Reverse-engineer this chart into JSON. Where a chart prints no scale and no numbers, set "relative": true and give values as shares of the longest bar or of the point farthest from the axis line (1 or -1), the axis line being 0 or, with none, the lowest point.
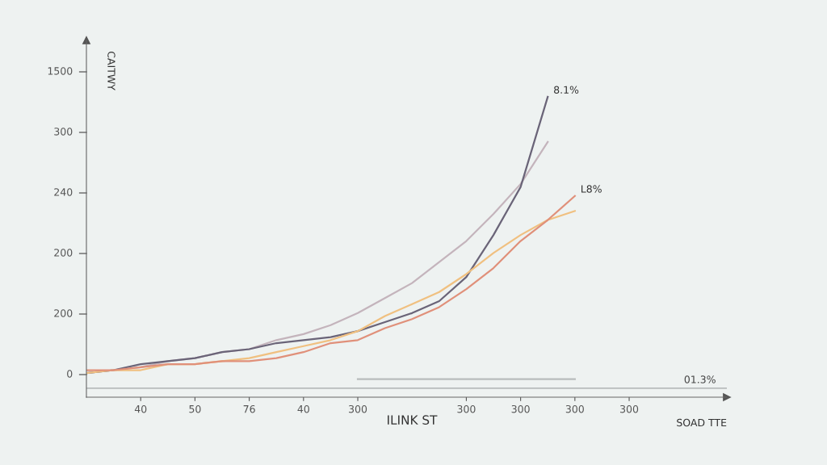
{
  "chart_data": {
    "type": "line",
    "ylabel": "CAITWY",
    "xlabel": "ILINK ST",
    "relative": true,
    "categories": [
      null,
      null,
      "40",
      null,
      "50",
      null,
      "76",
      null,
      "40",
      null,
      "300",
      null,
      null,
      null,
      "300",
      null,
      "300",
      null,
      "300",
      null,
      "300"
    ],
    "series": [
      {
        "color": "#c4b4bc",
        "values": [
          0.08,
          0.09,
          0.1,
          0.12,
          0.13,
          0.15,
          0.16,
          0.19,
          0.21,
          0.24,
          0.28,
          0.33,
          0.38,
          0.45,
          0.52,
          0.61,
          0.71,
          0.85,
          null,
          null,
          null
        ]
      },
      {
        "color": "#6a6478",
        "values": [
          0.08,
          0.09,
          0.11,
          0.12,
          0.13,
          0.15,
          0.16,
          0.18,
          0.19,
          0.2,
          0.22,
          0.25,
          0.28,
          0.32,
          0.4,
          0.54,
          0.7,
          1.0,
          null,
          null,
          null
        ]
      },
      {
        "color": "#f0c080",
        "values": [
          0.08,
          0.09,
          0.09,
          0.11,
          0.11,
          0.12,
          0.13,
          0.15,
          0.17,
          0.19,
          0.22,
          0.27,
          0.31,
          0.35,
          0.41,
          0.48,
          0.54,
          0.59,
          0.62,
          null,
          null
        ]
      },
      {
        "color": "#e0907a",
        "values": [
          0.09,
          0.09,
          0.1,
          0.11,
          0.11,
          0.12,
          0.12,
          0.13,
          0.15,
          0.18,
          0.19,
          0.23,
          0.26,
          0.3,
          0.36,
          0.43,
          0.52,
          0.59,
          0.67,
          null,
          null
        ]
      },
      {
        "color": "#b8bcbc",
        "values": [
          null,
          null,
          null,
          null,
          null,
          null,
          null,
          null,
          null,
          null,
          0.06,
          0.06,
          0.06,
          0.06,
          0.06,
          0.06,
          0.06,
          0.06,
          0.06,
          null,
          null
        ]
      }
    ],
    "ref_lines": [
      {
        "axis": "y",
        "value": 0.03,
        "color": "#b8bcbc"
      }
    ],
    "annotations": [
      "8.1%",
      "L8%",
      "0",
      "200",
      "200",
      "240",
      "300",
      "1500",
      "01.3%",
      "SOAD TTE"
    ],
    "legend": false,
    "marker": "none",
    "line_style": "solid"
  }
}
